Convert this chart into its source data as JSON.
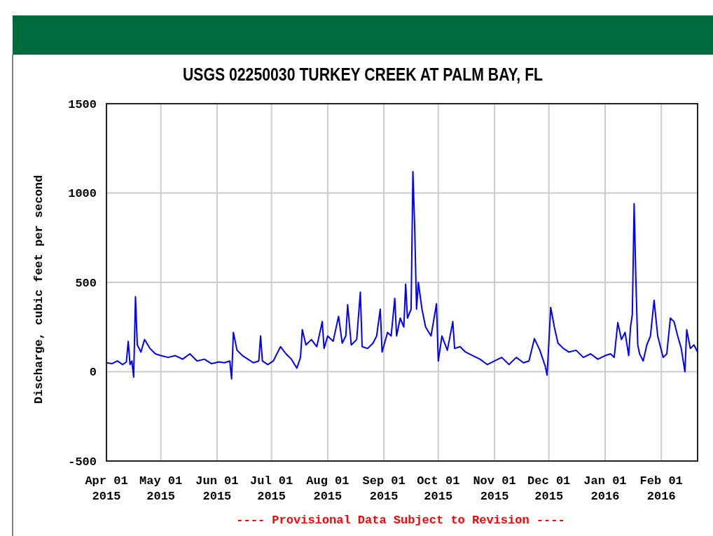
{
  "chart_data": {
    "type": "line",
    "title": "USGS 02250030 TURKEY CREEK AT PALM BAY, FL",
    "ylabel": "Discharge, cubic feet per second",
    "annotations": [
      "---- Provisional Data Subject to Revision ----"
    ],
    "grid": true,
    "xlim": [
      "2015-04-01",
      "2016-02-21"
    ],
    "ylim": [
      -500,
      1500
    ],
    "yticks": [
      -500,
      0,
      500,
      1000,
      1500
    ],
    "xticks": [
      {
        "value": "2015-04-01",
        "label": "Apr 01 2015"
      },
      {
        "value": "2015-05-01",
        "label": "May 01 2015"
      },
      {
        "value": "2015-06-01",
        "label": "Jun 01 2015"
      },
      {
        "value": "2015-07-01",
        "label": "Jul 01 2015"
      },
      {
        "value": "2015-08-01",
        "label": "Aug 01 2015"
      },
      {
        "value": "2015-09-01",
        "label": "Sep 01 2015"
      },
      {
        "value": "2015-10-01",
        "label": "Oct 01 2015"
      },
      {
        "value": "2015-11-01",
        "label": "Nov 01 2015"
      },
      {
        "value": "2015-12-01",
        "label": "Dec 01 2015"
      },
      {
        "value": "2016-01-01",
        "label": "Jan 01 2016"
      },
      {
        "value": "2016-02-01",
        "label": "Feb 01 2016"
      }
    ],
    "x": [
      "2015-04-01",
      "2015-04-04",
      "2015-04-07",
      "2015-04-10",
      "2015-04-12",
      "2015-04-13",
      "2015-04-14",
      "2015-04-15",
      "2015-04-16",
      "2015-04-17",
      "2015-04-18",
      "2015-04-20",
      "2015-04-22",
      "2015-04-25",
      "2015-04-28",
      "2015-05-01",
      "2015-05-05",
      "2015-05-09",
      "2015-05-13",
      "2015-05-17",
      "2015-05-21",
      "2015-05-25",
      "2015-05-29",
      "2015-06-02",
      "2015-06-05",
      "2015-06-08",
      "2015-06-09",
      "2015-06-10",
      "2015-06-12",
      "2015-06-15",
      "2015-06-18",
      "2015-06-21",
      "2015-06-24",
      "2015-06-25",
      "2015-06-26",
      "2015-06-29",
      "2015-07-02",
      "2015-07-06",
      "2015-07-09",
      "2015-07-12",
      "2015-07-15",
      "2015-07-17",
      "2015-07-18",
      "2015-07-20",
      "2015-07-23",
      "2015-07-26",
      "2015-07-29",
      "2015-07-30",
      "2015-08-01",
      "2015-08-04",
      "2015-08-07",
      "2015-08-09",
      "2015-08-11",
      "2015-08-12",
      "2015-08-14",
      "2015-08-17",
      "2015-08-19",
      "2015-08-20",
      "2015-08-23",
      "2015-08-26",
      "2015-08-28",
      "2015-08-30",
      "2015-08-31",
      "2015-09-03",
      "2015-09-05",
      "2015-09-07",
      "2015-09-08",
      "2015-09-10",
      "2015-09-12",
      "2015-09-13",
      "2015-09-14",
      "2015-09-16",
      "2015-09-17",
      "2015-09-18",
      "2015-09-19",
      "2015-09-20",
      "2015-09-22",
      "2015-09-24",
      "2015-09-27",
      "2015-09-30",
      "2015-10-01",
      "2015-10-03",
      "2015-10-06",
      "2015-10-09",
      "2015-10-10",
      "2015-10-13",
      "2015-10-16",
      "2015-10-20",
      "2015-10-24",
      "2015-10-28",
      "2015-11-01",
      "2015-11-05",
      "2015-11-09",
      "2015-11-13",
      "2015-11-17",
      "2015-11-20",
      "2015-11-23",
      "2015-11-26",
      "2015-11-29",
      "2015-11-30",
      "2015-12-02",
      "2015-12-04",
      "2015-12-06",
      "2015-12-09",
      "2015-12-12",
      "2015-12-16",
      "2015-12-20",
      "2015-12-24",
      "2015-12-28",
      "2016-01-01",
      "2016-01-04",
      "2016-01-06",
      "2016-01-08",
      "2016-01-10",
      "2016-01-12",
      "2016-01-14",
      "2016-01-15",
      "2016-01-16",
      "2016-01-17",
      "2016-01-18",
      "2016-01-19",
      "2016-01-20",
      "2016-01-22",
      "2016-01-24",
      "2016-01-26",
      "2016-01-28",
      "2016-01-30",
      "2016-02-02",
      "2016-02-04",
      "2016-02-06",
      "2016-02-08",
      "2016-02-10",
      "2016-02-12",
      "2016-02-14",
      "2016-02-15",
      "2016-02-17",
      "2016-02-19",
      "2016-02-21"
    ],
    "series": [
      {
        "color": "#0000ff",
        "values": [
          50,
          45,
          60,
          40,
          55,
          170,
          40,
          60,
          -30,
          420,
          150,
          110,
          180,
          130,
          100,
          90,
          80,
          90,
          70,
          100,
          60,
          70,
          45,
          55,
          50,
          60,
          -40,
          220,
          120,
          90,
          70,
          50,
          60,
          200,
          60,
          40,
          60,
          140,
          100,
          70,
          20,
          80,
          235,
          150,
          180,
          140,
          280,
          130,
          200,
          170,
          310,
          160,
          200,
          375,
          150,
          180,
          445,
          140,
          130,
          160,
          200,
          350,
          110,
          220,
          200,
          410,
          200,
          300,
          250,
          490,
          300,
          350,
          1120,
          800,
          350,
          500,
          350,
          250,
          200,
          380,
          60,
          200,
          120,
          280,
          130,
          140,
          110,
          90,
          70,
          40,
          60,
          80,
          40,
          80,
          50,
          60,
          185,
          120,
          30,
          -20,
          360,
          250,
          160,
          130,
          110,
          120,
          80,
          100,
          70,
          90,
          100,
          80,
          275,
          180,
          220,
          90,
          250,
          320,
          940,
          500,
          150,
          100,
          60,
          150,
          200,
          400,
          200,
          80,
          100,
          300,
          280,
          200,
          130,
          0,
          235,
          130,
          150,
          110
        ]
      }
    ]
  }
}
